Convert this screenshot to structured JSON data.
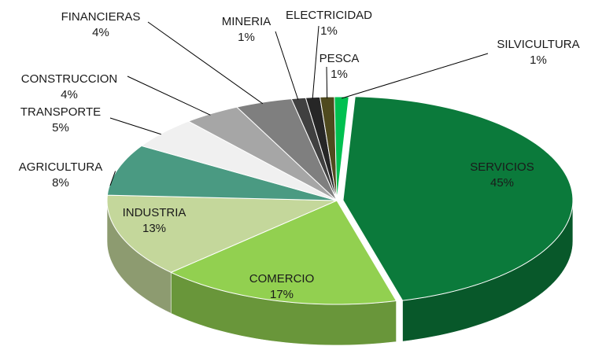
{
  "chart_data": {
    "type": "pie",
    "categories": [
      "SERVICIOS",
      "COMERCIO",
      "INDUSTRIA",
      "AGRICULTURA",
      "TRANSPORTE",
      "CONSTRUCCION",
      "FINANCIERAS",
      "MINERIA",
      "ELECTRICIDAD",
      "PESCA",
      "SILVICULTURA"
    ],
    "values": [
      45,
      17,
      13,
      8,
      5,
      4,
      4,
      1,
      1,
      1,
      1
    ],
    "value_labels": [
      "45%",
      "17%",
      "13%",
      "8%",
      "5%",
      "4%",
      "4%",
      "1%",
      "1%",
      "1%",
      "1%"
    ],
    "colors": [
      "#0b7a3b",
      "#92d050",
      "#c4d79b",
      "#4a9a82",
      "#f0f0f0",
      "#a6a6a6",
      "#7f7f7f",
      "#404040",
      "#262626",
      "#4f4a1e",
      "#00c050"
    ]
  }
}
